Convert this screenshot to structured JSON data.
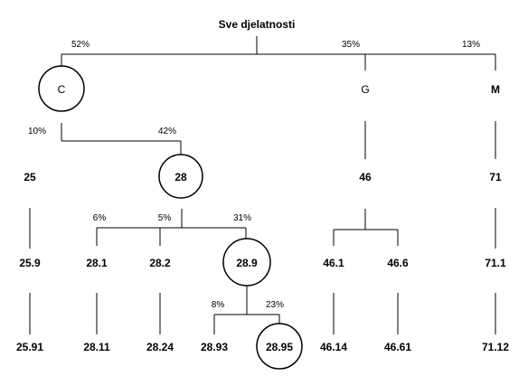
{
  "root": {
    "label": "Sve djelatnosti"
  },
  "level1": {
    "C": {
      "label": "C",
      "pct": "52%"
    },
    "G": {
      "label": "G",
      "pct": "35%"
    },
    "M": {
      "label": "M",
      "pct": "13%"
    }
  },
  "level2": {
    "n25": {
      "label": "25",
      "pct": "10%"
    },
    "n28": {
      "label": "28",
      "pct": "42%"
    },
    "n46": {
      "label": "46"
    },
    "n71": {
      "label": "71"
    }
  },
  "level3": {
    "n25_9": {
      "label": "25.9"
    },
    "n28_1": {
      "label": "28.1",
      "pct": "6%"
    },
    "n28_2": {
      "label": "28.2",
      "pct": "5%"
    },
    "n28_9": {
      "label": "28.9",
      "pct": "31%"
    },
    "n46_1": {
      "label": "46.1"
    },
    "n46_6": {
      "label": "46.6"
    },
    "n71_1": {
      "label": "71.1"
    }
  },
  "level4": {
    "n25_91": {
      "label": "25.91"
    },
    "n28_11": {
      "label": "28.11"
    },
    "n28_24": {
      "label": "28.24"
    },
    "n28_93": {
      "label": "28.93",
      "pct": "8%"
    },
    "n28_95": {
      "label": "28.95",
      "pct": "23%"
    },
    "n46_14": {
      "label": "46.14"
    },
    "n46_61": {
      "label": "46.61"
    },
    "n71_12": {
      "label": "71.12"
    }
  }
}
